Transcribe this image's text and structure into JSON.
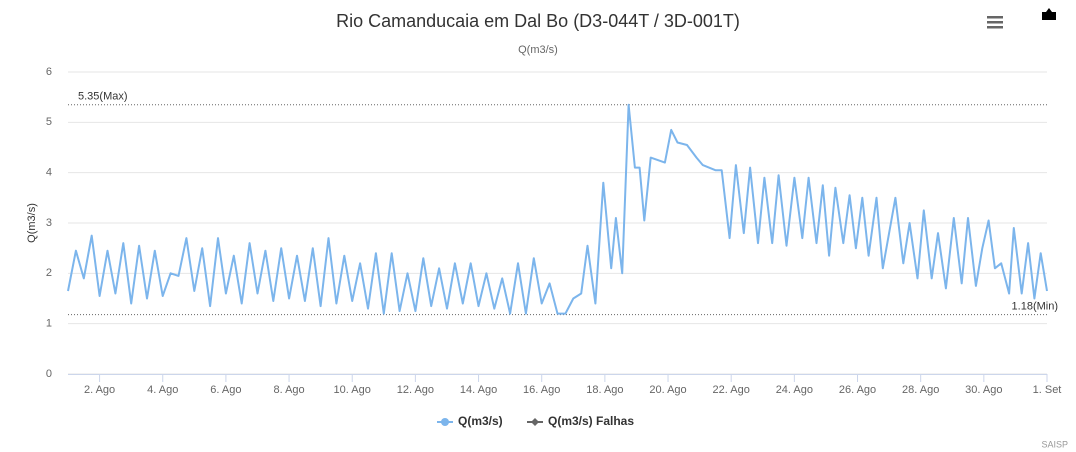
{
  "chart_data": {
    "type": "line",
    "title": "Rio Camanducaia em Dal Bo (D3-044T / 3D-001T)",
    "subtitle": "Q(m3/s)",
    "y_label": "Q(m3/s)",
    "credits": "SAISP",
    "xlim": [
      1,
      32
    ],
    "xticks": [
      {
        "value": 2,
        "label": "2. Ago"
      },
      {
        "value": 4,
        "label": "4. Ago"
      },
      {
        "value": 6,
        "label": "6. Ago"
      },
      {
        "value": 8,
        "label": "8. Ago"
      },
      {
        "value": 10,
        "label": "10. Ago"
      },
      {
        "value": 12,
        "label": "12. Ago"
      },
      {
        "value": 14,
        "label": "14. Ago"
      },
      {
        "value": 16,
        "label": "16. Ago"
      },
      {
        "value": 18,
        "label": "18. Ago"
      },
      {
        "value": 20,
        "label": "20. Ago"
      },
      {
        "value": 22,
        "label": "22. Ago"
      },
      {
        "value": 24,
        "label": "24. Ago"
      },
      {
        "value": 26,
        "label": "26. Ago"
      },
      {
        "value": 28,
        "label": "28. Ago"
      },
      {
        "value": 30,
        "label": "30. Ago"
      },
      {
        "value": 32,
        "label": "1. Set"
      }
    ],
    "ylim": [
      0,
      6
    ],
    "yticks": [
      0,
      1,
      2,
      3,
      4,
      5,
      6
    ],
    "grid": true,
    "plot_lines": [
      {
        "value": 5.35,
        "label": "5.35(Max)"
      },
      {
        "value": 1.18,
        "label": "1.18(Min)"
      }
    ],
    "series": [
      {
        "name": "Q(m3/s)",
        "color": "#7cb5ec",
        "x": [
          1,
          1.25,
          1.5,
          1.75,
          2,
          2.25,
          2.5,
          2.75,
          3,
          3.25,
          3.5,
          3.75,
          4,
          4.25,
          4.5,
          4.75,
          5,
          5.25,
          5.5,
          5.75,
          6,
          6.25,
          6.5,
          6.75,
          7,
          7.25,
          7.5,
          7.75,
          8,
          8.25,
          8.5,
          8.75,
          9,
          9.25,
          9.5,
          9.75,
          10,
          10.25,
          10.5,
          10.75,
          11,
          11.25,
          11.5,
          11.75,
          12,
          12.25,
          12.5,
          12.75,
          13,
          13.25,
          13.5,
          13.75,
          14,
          14.25,
          14.5,
          14.75,
          15,
          15.25,
          15.5,
          15.75,
          16,
          16.25,
          16.5,
          16.75,
          17,
          17.25,
          17.45,
          17.7,
          17.95,
          18.2,
          18.35,
          18.55,
          18.75,
          18.95,
          19.1,
          19.25,
          19.45,
          19.9,
          20.1,
          20.3,
          20.6,
          20.9,
          21.1,
          21.5,
          21.7,
          21.95,
          22.15,
          22.4,
          22.6,
          22.85,
          23.05,
          23.3,
          23.5,
          23.75,
          24,
          24.25,
          24.45,
          24.7,
          24.9,
          25.1,
          25.3,
          25.55,
          25.75,
          25.95,
          26.15,
          26.35,
          26.6,
          26.8,
          27,
          27.2,
          27.45,
          27.65,
          27.9,
          28.1,
          28.35,
          28.55,
          28.8,
          29.05,
          29.3,
          29.5,
          29.75,
          29.95,
          30.15,
          30.35,
          30.55,
          30.8,
          30.95,
          31.2,
          31.4,
          31.6,
          31.8,
          32
        ],
        "values": [
          1.65,
          2.45,
          1.9,
          2.75,
          1.55,
          2.45,
          1.6,
          2.6,
          1.4,
          2.55,
          1.5,
          2.45,
          1.55,
          2.0,
          1.95,
          2.7,
          1.65,
          2.5,
          1.35,
          2.7,
          1.6,
          2.35,
          1.4,
          2.6,
          1.6,
          2.45,
          1.45,
          2.5,
          1.5,
          2.35,
          1.45,
          2.5,
          1.35,
          2.7,
          1.4,
          2.35,
          1.45,
          2.2,
          1.3,
          2.4,
          1.2,
          2.4,
          1.25,
          2.0,
          1.25,
          2.3,
          1.35,
          2.1,
          1.3,
          2.2,
          1.4,
          2.2,
          1.35,
          2.0,
          1.3,
          1.9,
          1.2,
          2.2,
          1.2,
          2.3,
          1.4,
          1.8,
          1.2,
          1.2,
          1.5,
          1.6,
          2.55,
          1.4,
          3.8,
          2.1,
          3.1,
          2.0,
          5.35,
          4.1,
          4.1,
          3.05,
          4.3,
          4.2,
          4.85,
          4.6,
          4.55,
          4.3,
          4.15,
          4.05,
          4.05,
          2.7,
          4.15,
          2.8,
          4.1,
          2.6,
          3.9,
          2.6,
          3.95,
          2.55,
          3.9,
          2.7,
          3.9,
          2.6,
          3.75,
          2.35,
          3.7,
          2.6,
          3.55,
          2.5,
          3.5,
          2.35,
          3.5,
          2.1,
          2.8,
          3.5,
          2.2,
          3.0,
          1.9,
          3.25,
          1.9,
          2.8,
          1.7,
          3.1,
          1.8,
          3.1,
          1.75,
          2.5,
          3.05,
          2.1,
          2.2,
          1.6,
          2.9,
          1.6,
          2.6,
          1.5,
          2.4,
          1.65
        ]
      },
      {
        "name": "Q(m3/s) Falhas",
        "color": "#666666",
        "x": [],
        "values": []
      }
    ]
  }
}
